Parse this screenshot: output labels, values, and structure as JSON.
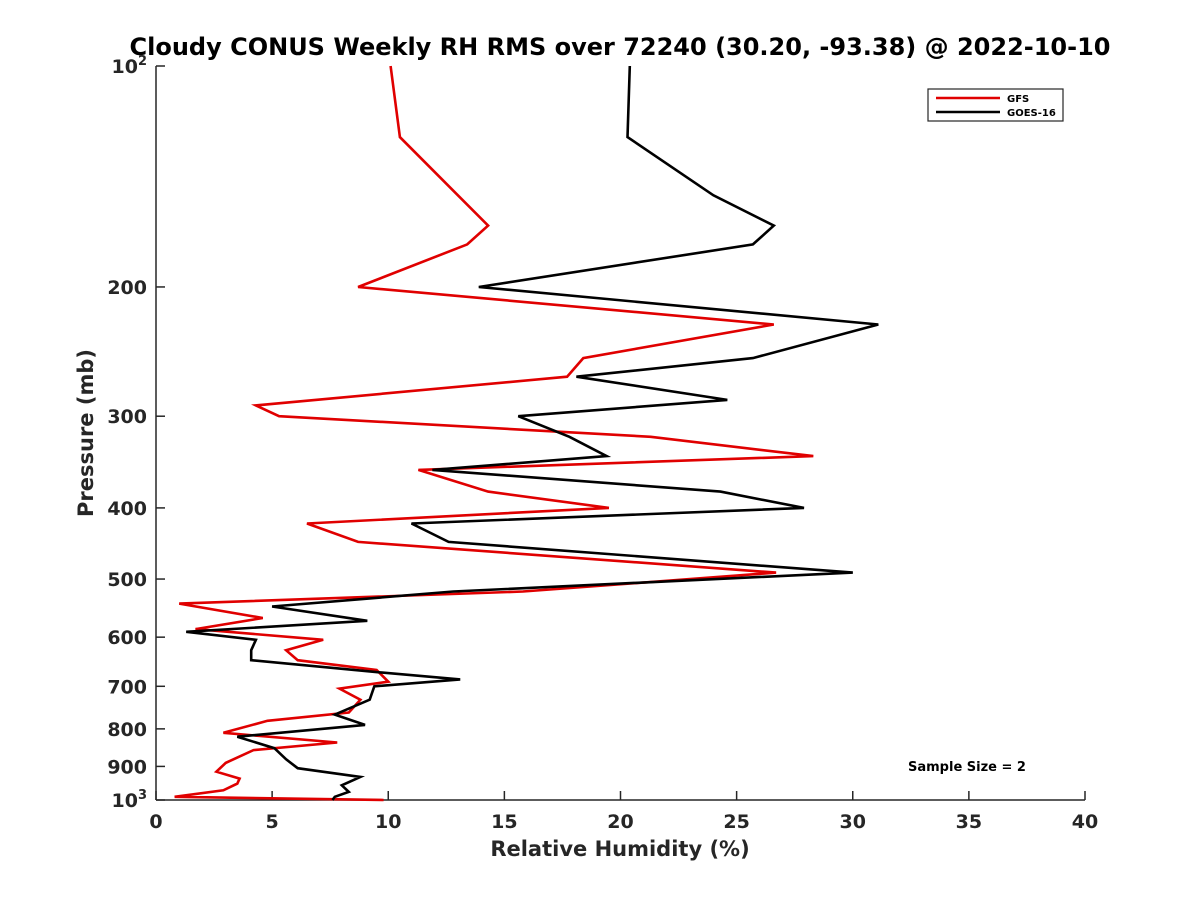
{
  "chart_data": {
    "type": "line",
    "title": "Cloudy CONUS Weekly RH RMS over 72240 (30.20, -93.38) @ 2022-10-10",
    "xlabel": "Relative Humidity (%)",
    "ylabel": "Pressure (mb)",
    "xlim": [
      0,
      40
    ],
    "ylim": [
      100,
      1000
    ],
    "yscale": "log",
    "y_reversed": true,
    "x_ticks": [
      0,
      5,
      10,
      15,
      20,
      25,
      30,
      35,
      40
    ],
    "x_tick_labels": [
      "0",
      "5",
      "10",
      "15",
      "20",
      "25",
      "30",
      "35",
      "40"
    ],
    "y_ticks": [
      {
        "value": 100,
        "label": "10",
        "sup": "2"
      },
      {
        "value": 200,
        "label": "200",
        "sup": ""
      },
      {
        "value": 300,
        "label": "300",
        "sup": ""
      },
      {
        "value": 400,
        "label": "400",
        "sup": ""
      },
      {
        "value": 500,
        "label": "500",
        "sup": ""
      },
      {
        "value": 600,
        "label": "600",
        "sup": ""
      },
      {
        "value": 700,
        "label": "700",
        "sup": ""
      },
      {
        "value": 800,
        "label": "800",
        "sup": ""
      },
      {
        "value": 900,
        "label": "900",
        "sup": ""
      },
      {
        "value": 1000,
        "label": "10",
        "sup": "3"
      }
    ],
    "legend_position": "top-right",
    "annotation": "Sample Size = 2",
    "series": [
      {
        "name": "GFS",
        "color": "#e00000",
        "points": [
          [
            10.1,
            100
          ],
          [
            10.5,
            125
          ],
          [
            13.0,
            150
          ],
          [
            14.3,
            165
          ],
          [
            13.4,
            175
          ],
          [
            8.7,
            200
          ],
          [
            26.6,
            225
          ],
          [
            18.4,
            250
          ],
          [
            17.7,
            265
          ],
          [
            4.3,
            290
          ],
          [
            5.3,
            300
          ],
          [
            21.3,
            320
          ],
          [
            28.3,
            340
          ],
          [
            11.3,
            355
          ],
          [
            14.3,
            380
          ],
          [
            19.5,
            400
          ],
          [
            6.5,
            420
          ],
          [
            8.7,
            445
          ],
          [
            26.7,
            490
          ],
          [
            15.8,
            520
          ],
          [
            1.0,
            540
          ],
          [
            4.6,
            565
          ],
          [
            1.7,
            585
          ],
          [
            7.2,
            605
          ],
          [
            5.6,
            625
          ],
          [
            6.1,
            645
          ],
          [
            9.5,
            665
          ],
          [
            10.0,
            690
          ],
          [
            7.9,
            705
          ],
          [
            8.8,
            730
          ],
          [
            8.3,
            760
          ],
          [
            4.8,
            780
          ],
          [
            2.9,
            810
          ],
          [
            7.8,
            835
          ],
          [
            4.2,
            855
          ],
          [
            3.0,
            890
          ],
          [
            2.6,
            915
          ],
          [
            3.6,
            935
          ],
          [
            3.5,
            950
          ],
          [
            2.9,
            970
          ],
          [
            0.8,
            990
          ],
          [
            9.8,
            1000
          ]
        ]
      },
      {
        "name": "GOES-16",
        "color": "#000000",
        "points": [
          [
            20.4,
            100
          ],
          [
            20.3,
            125
          ],
          [
            24.0,
            150
          ],
          [
            26.6,
            165
          ],
          [
            25.7,
            175
          ],
          [
            13.9,
            200
          ],
          [
            31.1,
            225
          ],
          [
            25.7,
            250
          ],
          [
            18.1,
            265
          ],
          [
            24.6,
            285
          ],
          [
            15.6,
            300
          ],
          [
            17.8,
            320
          ],
          [
            19.4,
            340
          ],
          [
            11.9,
            355
          ],
          [
            24.3,
            380
          ],
          [
            27.9,
            400
          ],
          [
            11.0,
            420
          ],
          [
            12.6,
            445
          ],
          [
            30.0,
            490
          ],
          [
            12.8,
            520
          ],
          [
            5.0,
            545
          ],
          [
            9.1,
            570
          ],
          [
            1.3,
            590
          ],
          [
            4.3,
            605
          ],
          [
            4.1,
            625
          ],
          [
            4.1,
            645
          ],
          [
            9.6,
            670
          ],
          [
            13.1,
            685
          ],
          [
            9.4,
            700
          ],
          [
            9.2,
            730
          ],
          [
            7.7,
            765
          ],
          [
            9.0,
            790
          ],
          [
            3.5,
            820
          ],
          [
            5.1,
            850
          ],
          [
            5.6,
            880
          ],
          [
            6.1,
            905
          ],
          [
            8.8,
            930
          ],
          [
            8.0,
            955
          ],
          [
            8.3,
            975
          ],
          [
            7.7,
            990
          ],
          [
            7.6,
            1000
          ]
        ]
      }
    ]
  }
}
